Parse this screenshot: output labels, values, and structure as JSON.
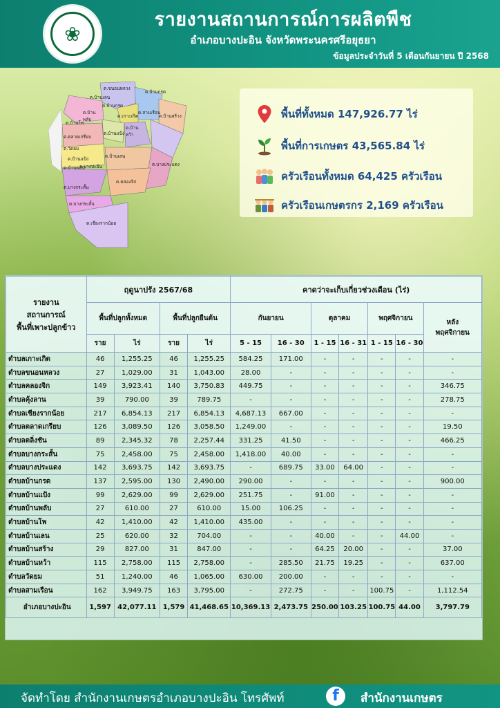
{
  "header": {
    "title": "รายงานสถานการณ์การผลิตพืช",
    "subtitle": "อำเภอบางปะอิน จังหวัดพระนครศรีอยุธยา",
    "date": "ข้อมูลประจำวันที่  5  เดือนกันยายน ปี 2568"
  },
  "map": {
    "labels": [
      "ต.บ้านกรด",
      "ต.บ้าน\nพลับ",
      "ต.บ้านโพ",
      "ต.ขนอนหลวง",
      "ต.สามเรือน",
      "ต.บ้านสร้าง",
      "ต.เกาะเกิด",
      "ต.บ้านแป้ง",
      "ต.ตลาดเกรียบ",
      "ต.บ้าน\nหว้า",
      "ต.วัดยม",
      "ต.บ้านเลน",
      "ต.บ้านแป้ง",
      "ต.บางกระสั้น",
      "อ.บางปะอิน",
      "ต.บ้านพลับ",
      "ต.คลองจิก",
      "ต.บางประแดง",
      "ต.บ้านกรด",
      "ต.บ้านเลน",
      "ต.บางกระสั้น",
      "ต.เชียงรากน้อย"
    ]
  },
  "info": {
    "items": [
      {
        "icon": "location-pin-icon",
        "text": "พื้นที่ทั้งหมด 147,926.77 ไร่"
      },
      {
        "icon": "seedling-icon",
        "text": "พื้นที่การเกษตร 43,565.84 ไร่"
      },
      {
        "icon": "family-icon",
        "text": "ครัวเรือนทั้งหมด 64,425 ครัวเรือน"
      },
      {
        "icon": "farmers-icon",
        "text": "ครัวเรือนเกษตรกร 2,169 ครัวเรือน"
      }
    ]
  },
  "table": {
    "head": {
      "report": "รายงาน\nสถานการณ์\nพื้นที่เพาะปลูกข้าว",
      "season": "ฤดูนาปรัง 2567/68",
      "harvest": "คาดว่าจะเก็บเกี่ยวช่วงเดือน (ไร่)",
      "planted_total": "พื้นที่ปลูกทั้งหมด",
      "planted_standing": "พื้นที่ปลูกยืนต้น",
      "sep": "กันยายน",
      "oct": "ตุลาคม",
      "nov": "พฤศจิกายน",
      "after": "หลัง\nพฤศจิกายน",
      "rai_hh": "ราย",
      "rai_area": "ไร่",
      "p1_15": "5 - 15",
      "p16_30": "16 - 30",
      "o1_15": "1 - 15",
      "o16_31": "16 - 31",
      "n1_15": "1 - 15",
      "n16_30": "16 - 30"
    },
    "rows": [
      [
        "ตำบลเกาะเกิด",
        "46",
        "1,255.25",
        "46",
        "1,255.25",
        "584.25",
        "171.00",
        "-",
        "-",
        "-",
        "-",
        "-"
      ],
      [
        "ตำบลขนอนหลวง",
        "27",
        "1,029.00",
        "31",
        "1,043.00",
        "28.00",
        "-",
        "-",
        "-",
        "-",
        "-",
        "-"
      ],
      [
        "ตำบลคลองจิก",
        "149",
        "3,923.41",
        "140",
        "3,750.83",
        "449.75",
        "-",
        "-",
        "-",
        "-",
        "-",
        "346.75"
      ],
      [
        "ตำบลคุ้งลาน",
        "39",
        "790.00",
        "39",
        "789.75",
        "-",
        "-",
        "-",
        "-",
        "-",
        "-",
        "278.75"
      ],
      [
        "ตำบลเชียงรากน้อย",
        "217",
        "6,854.13",
        "217",
        "6,854.13",
        "4,687.13",
        "667.00",
        "-",
        "-",
        "-",
        "-",
        "-"
      ],
      [
        "ตำบลตลาดเกรียบ",
        "126",
        "3,089.50",
        "126",
        "3,058.50",
        "1,249.00",
        "-",
        "-",
        "-",
        "-",
        "-",
        "19.50"
      ],
      [
        "ตำบลตลิ่งชัน",
        "89",
        "2,345.32",
        "78",
        "2,257.44",
        "331.25",
        "41.50",
        "-",
        "-",
        "-",
        "-",
        "466.25"
      ],
      [
        "ตำบลบางกระสั้น",
        "75",
        "2,458.00",
        "75",
        "2,458.00",
        "1,418.00",
        "40.00",
        "-",
        "-",
        "-",
        "-",
        "-"
      ],
      [
        "ตำบลบางประแดง",
        "142",
        "3,693.75",
        "142",
        "3,693.75",
        "-",
        "689.75",
        "33.00",
        "64.00",
        "-",
        "-",
        "-"
      ],
      [
        "ตำบลบ้านกรด",
        "137",
        "2,595.00",
        "130",
        "2,490.00",
        "290.00",
        "-",
        "-",
        "-",
        "-",
        "-",
        "900.00"
      ],
      [
        "ตำบลบ้านแป้ง",
        "99",
        "2,629.00",
        "99",
        "2,629.00",
        "251.75",
        "-",
        "91.00",
        "-",
        "-",
        "-",
        "-"
      ],
      [
        "ตำบลบ้านพลับ",
        "27",
        "610.00",
        "27",
        "610.00",
        "15.00",
        "106.25",
        "-",
        "-",
        "-",
        "-",
        "-"
      ],
      [
        "ตำบลบ้านโพ",
        "42",
        "1,410.00",
        "42",
        "1,410.00",
        "435.00",
        "-",
        "-",
        "-",
        "-",
        "-",
        "-"
      ],
      [
        "ตำบลบ้านเลน",
        "25",
        "620.00",
        "32",
        "704.00",
        "-",
        "-",
        "40.00",
        "-",
        "-",
        "44.00",
        "-"
      ],
      [
        "ตำบลบ้านสร้าง",
        "29",
        "827.00",
        "31",
        "847.00",
        "-",
        "-",
        "64.25",
        "20.00",
        "-",
        "-",
        "37.00"
      ],
      [
        "ตำบลบ้านหว้า",
        "115",
        "2,758.00",
        "115",
        "2,758.00",
        "-",
        "285.50",
        "21.75",
        "19.25",
        "-",
        "-",
        "637.00"
      ],
      [
        "ตำบลวัดยม",
        "51",
        "1,240.00",
        "46",
        "1,065.00",
        "630.00",
        "200.00",
        "-",
        "-",
        "-",
        "-",
        "-"
      ],
      [
        "ตำบลสามเรือน",
        "162",
        "3,949.75",
        "163",
        "3,795.00",
        "-",
        "272.75",
        "-",
        "-",
        "100.75",
        "-",
        "1,112.54"
      ]
    ],
    "total": [
      "อำเภอบางปะอิน",
      "1,597",
      "42,077.11",
      "1,579",
      "41,468.65",
      "10,369.13",
      "2,473.75",
      "250.00",
      "103.25",
      "100.75",
      "44.00",
      "3,797.79"
    ]
  },
  "footer": {
    "text": "จัดทำโดย  สำนักงานเกษตรอำเภอบางปะอิน  โทรศัพท์",
    "fb_glyph": "f",
    "page": "สำนักงานเกษตร"
  },
  "colors": {
    "header_bg": "#129483",
    "info_text": "#1f4f8c",
    "table_border": "#8fa7c7"
  }
}
